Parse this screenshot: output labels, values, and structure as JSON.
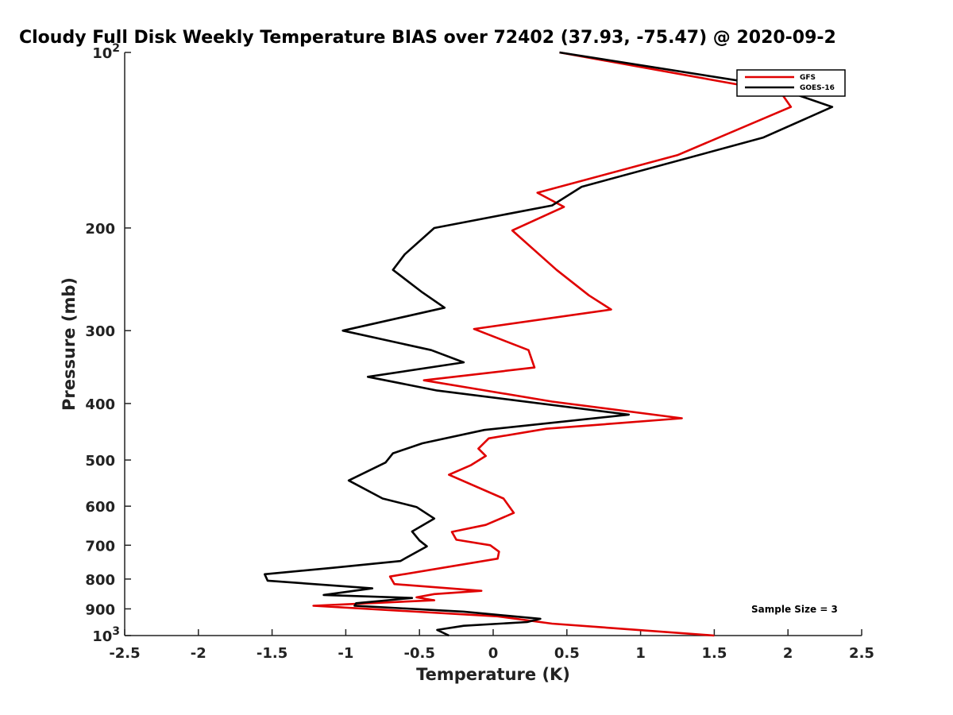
{
  "chart_data": {
    "type": "line",
    "title": "Cloudy Full Disk Weekly Temperature BIAS over 72402 (37.93, -75.47) @ 2020-09-2",
    "xlabel": "Temperature (K)",
    "ylabel": "Pressure (mb)",
    "xlim": [
      -2.5,
      2.5
    ],
    "ylim": [
      100,
      1000
    ],
    "y_scale": "log",
    "y_reversed": true,
    "grid": false,
    "x_ticks": [
      {
        "value": -2.5,
        "label": "-2.5"
      },
      {
        "value": -2,
        "label": "-2"
      },
      {
        "value": -1.5,
        "label": "-1.5"
      },
      {
        "value": -1,
        "label": "-1"
      },
      {
        "value": -0.5,
        "label": "-0.5"
      },
      {
        "value": 0,
        "label": "0"
      },
      {
        "value": 0.5,
        "label": "0.5"
      },
      {
        "value": 1,
        "label": "1"
      },
      {
        "value": 1.5,
        "label": "1.5"
      },
      {
        "value": 2,
        "label": "2"
      },
      {
        "value": 2.5,
        "label": "2.5"
      }
    ],
    "y_ticks": [
      {
        "value": 100,
        "base": "10",
        "exp": "2"
      },
      {
        "value": 200,
        "label": "200"
      },
      {
        "value": 300,
        "label": "300"
      },
      {
        "value": 400,
        "label": "400"
      },
      {
        "value": 500,
        "label": "500"
      },
      {
        "value": 600,
        "label": "600"
      },
      {
        "value": 700,
        "label": "700"
      },
      {
        "value": 800,
        "label": "800"
      },
      {
        "value": 900,
        "label": "900"
      },
      {
        "value": 1000,
        "base": "10",
        "exp": "3"
      }
    ],
    "legend": {
      "placement": "top-right"
    },
    "annotation": "Sample Size = 3",
    "series": [
      {
        "name": "GFS",
        "color": "#e00000",
        "points": [
          [
            0.45,
            100
          ],
          [
            1.95,
            117
          ],
          [
            2.02,
            124
          ],
          [
            1.25,
            150
          ],
          [
            0.3,
            174
          ],
          [
            0.48,
            184
          ],
          [
            0.13,
            202
          ],
          [
            0.43,
            236
          ],
          [
            0.65,
            261
          ],
          [
            0.8,
            276
          ],
          [
            -0.13,
            298
          ],
          [
            0.24,
            324
          ],
          [
            0.28,
            347
          ],
          [
            -0.47,
            365
          ],
          [
            -0.05,
            380
          ],
          [
            0.4,
            397
          ],
          [
            1.28,
            424
          ],
          [
            0.36,
            442
          ],
          [
            -0.03,
            459
          ],
          [
            -0.1,
            478
          ],
          [
            -0.05,
            492
          ],
          [
            -0.15,
            510
          ],
          [
            -0.3,
            530
          ],
          [
            0.07,
            582
          ],
          [
            0.14,
            616
          ],
          [
            -0.05,
            646
          ],
          [
            -0.28,
            664
          ],
          [
            -0.25,
            685
          ],
          [
            -0.02,
            700
          ],
          [
            0.04,
            718
          ],
          [
            0.03,
            738
          ],
          [
            -0.7,
            792
          ],
          [
            -0.67,
            816
          ],
          [
            -0.08,
            838
          ],
          [
            -0.4,
            849
          ],
          [
            -0.52,
            860
          ],
          [
            -0.4,
            870
          ],
          [
            -1.22,
            889
          ],
          [
            0.03,
            927
          ],
          [
            0.4,
            954
          ],
          [
            1.5,
            1000
          ]
        ]
      },
      {
        "name": "GOES-16",
        "color": "#000000",
        "points": [
          [
            0.45,
            100
          ],
          [
            1.88,
            114
          ],
          [
            2.3,
            124
          ],
          [
            1.83,
            140
          ],
          [
            0.6,
            170
          ],
          [
            0.4,
            183
          ],
          [
            -0.4,
            200
          ],
          [
            -0.6,
            222
          ],
          [
            -0.68,
            236
          ],
          [
            -0.48,
            258
          ],
          [
            -0.33,
            274
          ],
          [
            -1.02,
            300
          ],
          [
            -0.42,
            324
          ],
          [
            -0.2,
            340
          ],
          [
            -0.85,
            360
          ],
          [
            -0.38,
            380
          ],
          [
            0.92,
            418
          ],
          [
            -0.06,
            444
          ],
          [
            -0.48,
            468
          ],
          [
            -0.68,
            487
          ],
          [
            -0.73,
            505
          ],
          [
            -0.98,
            542
          ],
          [
            -0.75,
            582
          ],
          [
            -0.52,
            602
          ],
          [
            -0.4,
            630
          ],
          [
            -0.55,
            663
          ],
          [
            -0.5,
            687
          ],
          [
            -0.45,
            703
          ],
          [
            -0.63,
            745
          ],
          [
            -1.08,
            765
          ],
          [
            -1.55,
            785
          ],
          [
            -1.53,
            805
          ],
          [
            -0.82,
            830
          ],
          [
            -1.15,
            852
          ],
          [
            -0.55,
            862
          ],
          [
            -0.93,
            880
          ],
          [
            -0.94,
            889
          ],
          [
            -0.2,
            910
          ],
          [
            0.32,
            936
          ],
          [
            0.23,
            948
          ],
          [
            -0.2,
            962
          ],
          [
            -0.38,
            978
          ],
          [
            -0.3,
            1000
          ]
        ]
      }
    ]
  }
}
